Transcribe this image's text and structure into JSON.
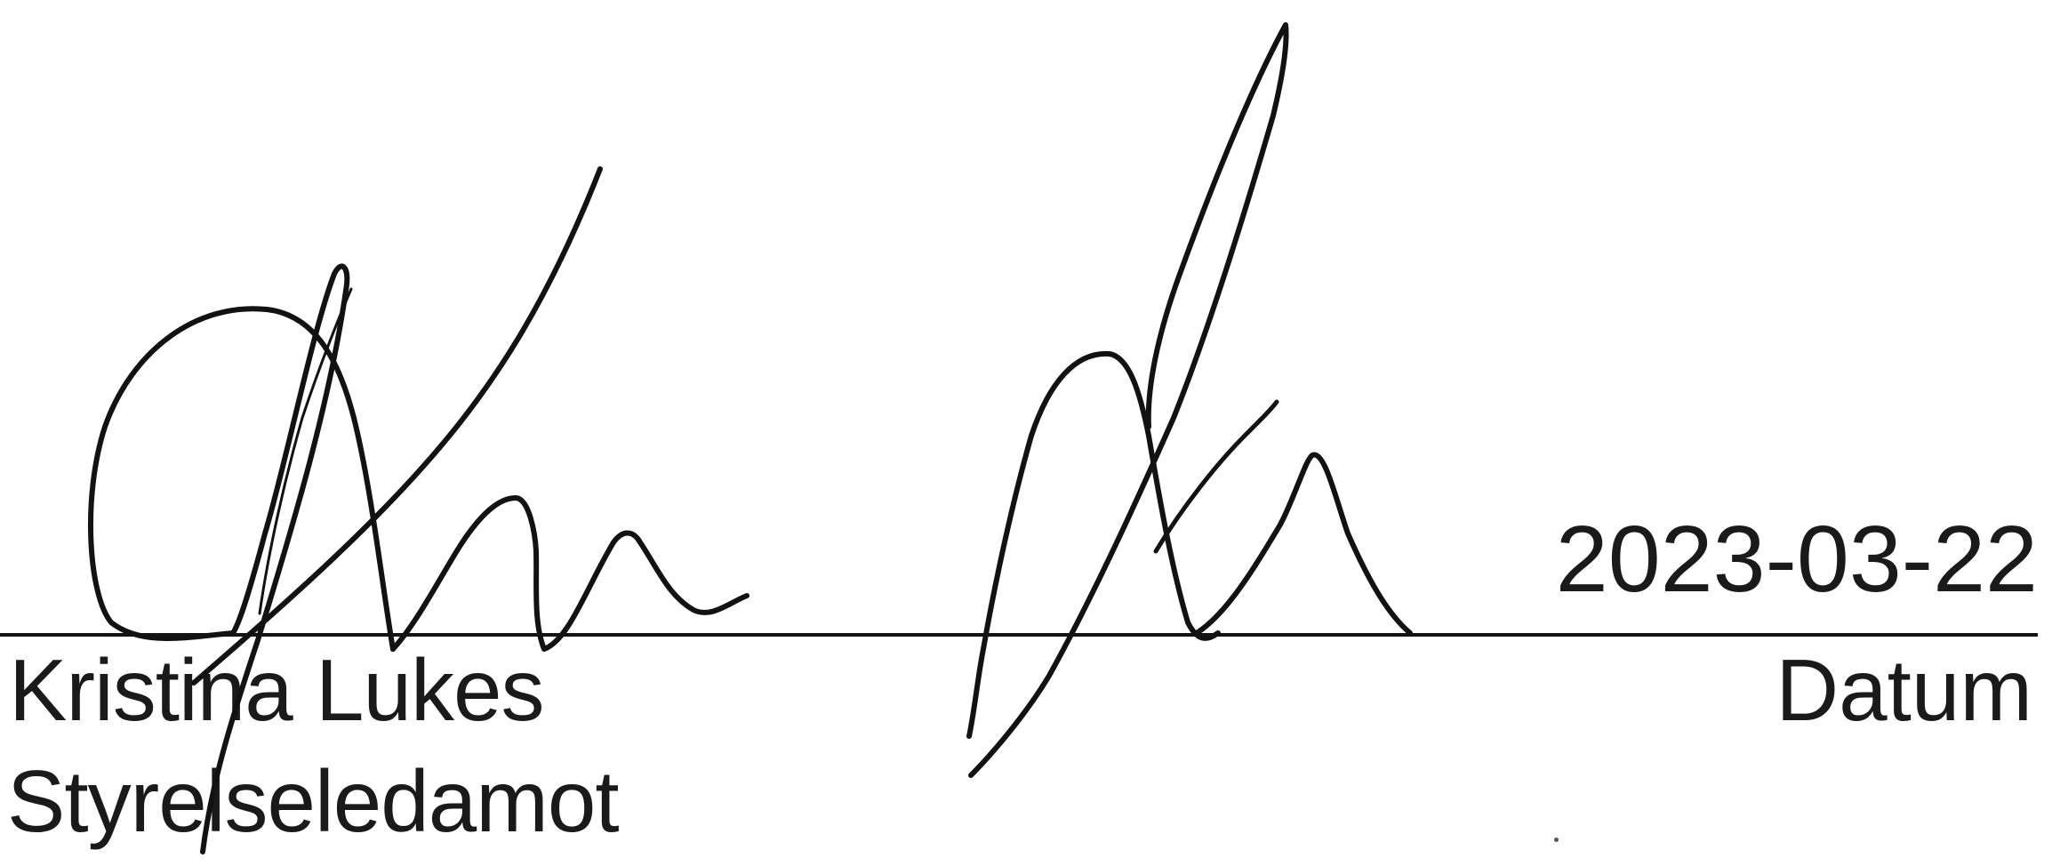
{
  "signer": {
    "name": "Kristina Lukes",
    "role": "Styrelseledamot"
  },
  "date": {
    "value": "2023-03-22",
    "label": "Datum"
  }
}
